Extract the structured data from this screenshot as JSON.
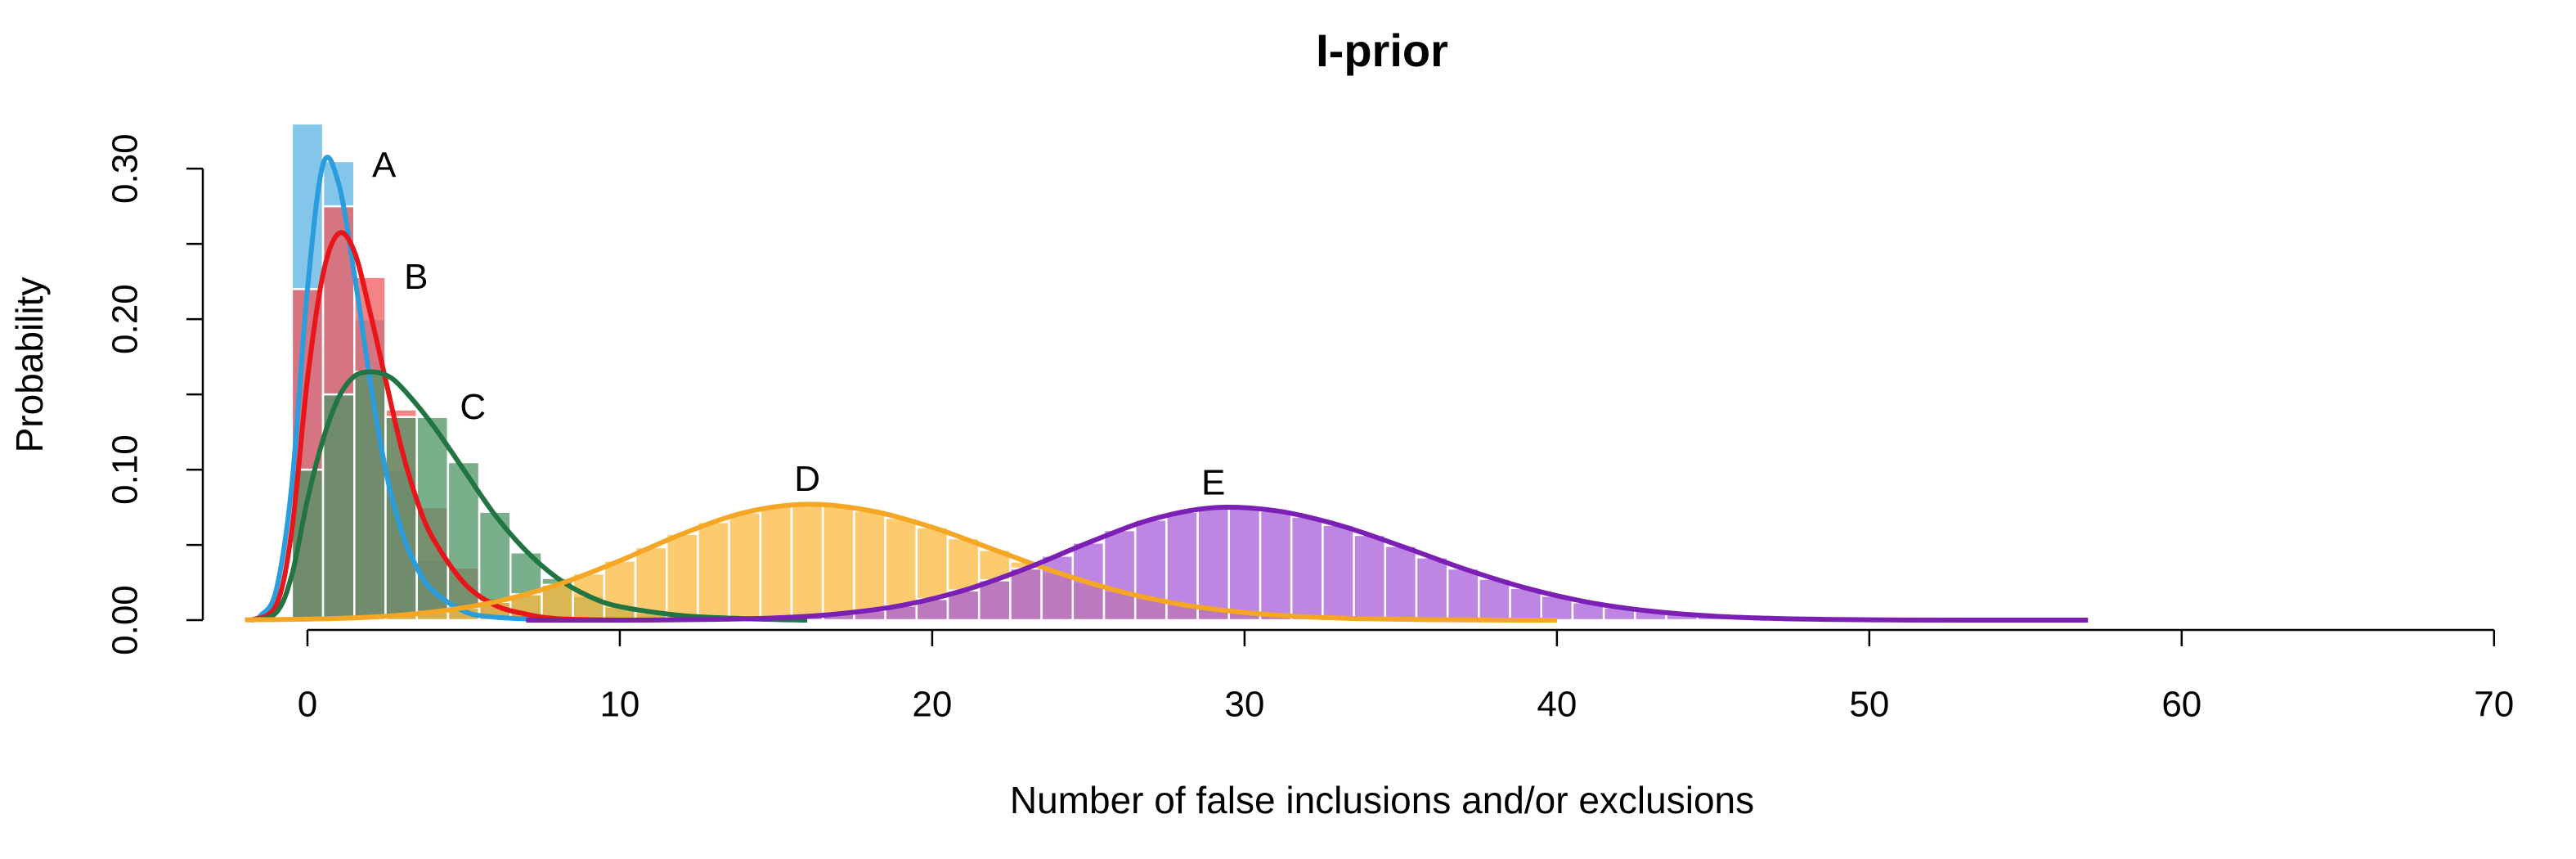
{
  "chart_data": {
    "type": "histogram",
    "title": "I-prior",
    "xlabel": "Number of false inclusions and/or exclusions",
    "ylabel": "Probability",
    "xlim": [
      -3.35,
      72.1
    ],
    "ylim": [
      -0.0065,
      0.33
    ],
    "xticks": [
      0,
      10,
      20,
      30,
      40,
      50,
      60,
      70
    ],
    "yticks": [
      {
        "value": 0,
        "label": "0.00"
      },
      {
        "value": 0.1,
        "label": "0.10"
      },
      {
        "value": 0.2,
        "label": "0.20"
      },
      {
        "value": 0.3,
        "label": "0.30"
      }
    ],
    "yminorticks": [
      0.05,
      0.15,
      0.25
    ],
    "series": [
      {
        "name": "A",
        "color": "#2a9ddf",
        "bar_color": "#5ab3e2",
        "bins": [
          -0.5,
          0.5,
          1.5,
          2.5,
          3.5,
          4.5,
          5.5,
          6.5
        ],
        "values": [
          0.33,
          0.305,
          0.2,
          0.1,
          0.04,
          0.012,
          0.003
        ],
        "curve_x": [
          -1.8,
          -1.5,
          -1,
          -0.5,
          0,
          0.5,
          1,
          1.5,
          2,
          2.5,
          3,
          3.5,
          4,
          5,
          6,
          8
        ],
        "curve_y": [
          0,
          0.003,
          0.02,
          0.09,
          0.22,
          0.303,
          0.29,
          0.23,
          0.16,
          0.1,
          0.06,
          0.035,
          0.02,
          0.006,
          0.002,
          0
        ]
      },
      {
        "name": "B",
        "color": "#e8161b",
        "bar_color": "#f05a5e",
        "bins": [
          -0.5,
          0.5,
          1.5,
          2.5,
          3.5,
          4.5,
          5.5,
          6.5,
          7.5
        ],
        "values": [
          0.22,
          0.275,
          0.228,
          0.14,
          0.075,
          0.035,
          0.015,
          0.005
        ],
        "curve_x": [
          -1.8,
          -1,
          -0.5,
          0,
          0.5,
          1,
          1.5,
          2,
          2.5,
          3,
          3.5,
          4,
          5,
          6,
          7,
          8,
          10
        ],
        "curve_y": [
          0,
          0.01,
          0.06,
          0.16,
          0.23,
          0.257,
          0.245,
          0.205,
          0.16,
          0.115,
          0.08,
          0.055,
          0.025,
          0.01,
          0.004,
          0.001,
          0
        ]
      },
      {
        "name": "C",
        "color": "#237443",
        "bar_color": "#4e9466",
        "bins": [
          -0.5,
          0.5,
          1.5,
          2.5,
          3.5,
          4.5,
          5.5,
          6.5,
          7.5,
          8.5,
          9.5,
          10.5,
          11.5,
          12.5,
          13.5,
          14.5
        ],
        "values": [
          0.1,
          0.15,
          0.165,
          0.135,
          0.135,
          0.105,
          0.072,
          0.045,
          0.028,
          0.016,
          0.009,
          0.005,
          0.003,
          0.002,
          0.001
        ],
        "curve_x": [
          -1.8,
          -1,
          -0.5,
          0,
          0.5,
          1,
          1.5,
          2,
          2.5,
          3,
          4,
          5,
          6,
          7,
          8,
          9,
          10,
          12,
          14,
          16
        ],
        "curve_y": [
          0,
          0.005,
          0.03,
          0.08,
          0.12,
          0.148,
          0.162,
          0.165,
          0.163,
          0.155,
          0.13,
          0.1,
          0.07,
          0.046,
          0.028,
          0.016,
          0.009,
          0.003,
          0.001,
          0
        ]
      },
      {
        "name": "D",
        "color": "#f5a623",
        "bar_color": "#fbb940",
        "bins": [
          -0.5,
          0.5,
          1.5,
          2.5,
          3.5,
          4.5,
          5.5,
          6.5,
          7.5,
          8.5,
          9.5,
          10.5,
          11.5,
          12.5,
          13.5,
          14.5,
          15.5,
          16.5,
          17.5,
          18.5,
          19.5,
          20.5,
          21.5,
          22.5,
          23.5,
          24.5,
          25.5,
          26.5,
          27.5,
          28.5,
          29.5,
          30.5,
          31.5,
          32.5,
          33.5,
          34.5,
          35.5
        ],
        "values": [
          0.0007,
          0.0012,
          0.002,
          0.0034,
          0.0054,
          0.0082,
          0.0121,
          0.0172,
          0.0235,
          0.031,
          0.0395,
          0.0485,
          0.0573,
          0.0652,
          0.0715,
          0.0756,
          0.077,
          0.0759,
          0.0728,
          0.0679,
          0.0617,
          0.0544,
          0.0467,
          0.039,
          0.0317,
          0.025,
          0.0192,
          0.0143,
          0.0104,
          0.0073,
          0.0051,
          0.0034,
          0.0022,
          0.0014,
          0.0009,
          0.0005
        ],
        "curve_x": [
          -2,
          0,
          2,
          4,
          6,
          8,
          10,
          12,
          14,
          16,
          18,
          20,
          22,
          24,
          26,
          28,
          30,
          32,
          34,
          36,
          38,
          40
        ],
        "curve_y": [
          0.0002,
          0.0007,
          0.002,
          0.0054,
          0.0121,
          0.0235,
          0.0395,
          0.0573,
          0.0715,
          0.077,
          0.0728,
          0.0617,
          0.0467,
          0.0317,
          0.0192,
          0.0104,
          0.0051,
          0.0022,
          0.0009,
          0.0003,
          0.0001,
          0
        ]
      },
      {
        "name": "E",
        "color": "#7b1fb5",
        "bar_color": "#a75ed8",
        "bins": [
          9.5,
          10.5,
          11.5,
          12.5,
          13.5,
          14.5,
          15.5,
          16.5,
          17.5,
          18.5,
          19.5,
          20.5,
          21.5,
          22.5,
          23.5,
          24.5,
          25.5,
          26.5,
          27.5,
          28.5,
          29.5,
          30.5,
          31.5,
          32.5,
          33.5,
          34.5,
          35.5,
          36.5,
          37.5,
          38.5,
          39.5,
          40.5,
          41.5,
          42.5,
          43.5,
          44.5,
          45.5
        ],
        "values": [
          0.0001,
          0.0001,
          0.0003,
          0.0005,
          0.0009,
          0.0015,
          0.0026,
          0.0042,
          0.0065,
          0.0097,
          0.0141,
          0.0197,
          0.0265,
          0.0343,
          0.0428,
          0.0515,
          0.0598,
          0.0668,
          0.0719,
          0.0747,
          0.0748,
          0.0727,
          0.0688,
          0.0633,
          0.0566,
          0.0493,
          0.0417,
          0.0343,
          0.0275,
          0.0214,
          0.0162,
          0.0119,
          0.0085,
          0.006,
          0.004,
          0.0027
        ],
        "curve_x": [
          7,
          9,
          11,
          13,
          15,
          17,
          19,
          21,
          23,
          25,
          27,
          29,
          31,
          33,
          35,
          37,
          39,
          41,
          43,
          45,
          47,
          49,
          51,
          53,
          55,
          57
        ],
        "curve_y": [
          0,
          0,
          0.0001,
          0.0005,
          0.0015,
          0.0042,
          0.0097,
          0.0197,
          0.0343,
          0.0515,
          0.0668,
          0.0747,
          0.0727,
          0.0633,
          0.0493,
          0.0343,
          0.0214,
          0.0119,
          0.006,
          0.0027,
          0.0011,
          0.0004,
          0.0001,
          0,
          0,
          0
        ]
      }
    ]
  }
}
